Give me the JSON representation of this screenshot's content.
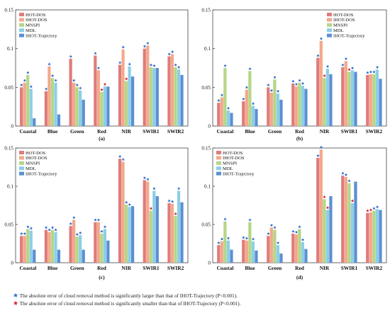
{
  "series_colors": [
    "#e07b7b",
    "#f3a98a",
    "#b5d686",
    "#8ccfe6",
    "#5b8fd4"
  ],
  "chart_data": [
    {
      "type": "bar",
      "panel_label": "(a)",
      "categories": [
        "Coastal",
        "Blue",
        "Green",
        "Red",
        "NIR",
        "SWIR1",
        "SWIR2"
      ],
      "ylim": [
        0,
        0.15
      ],
      "yticks": [
        "0",
        "0.05",
        "0.1",
        "0.15"
      ],
      "legend_position": "top-left",
      "series": [
        {
          "name": "HOT-DOS",
          "values": [
            0.05,
            0.045,
            0.087,
            0.091,
            0.079,
            0.1,
            0.09
          ]
        },
        {
          "name": "IHOT-DOS",
          "values": [
            0.056,
            0.077,
            0.056,
            0.072,
            0.099,
            0.104,
            0.093
          ]
        },
        {
          "name": "MNSPI",
          "values": [
            0.066,
            0.062,
            0.05,
            0.044,
            0.058,
            0.076,
            0.076
          ]
        },
        {
          "name": "MDL",
          "values": [
            0.048,
            0.056,
            0.046,
            0.051,
            0.077,
            0.075,
            0.073
          ]
        },
        {
          "name": "IHOT-Trajectory",
          "values": [
            0.01,
            0.015,
            0.034,
            0.051,
            0.064,
            0.075,
            0.066
          ]
        }
      ],
      "markers": [
        [
          "blue",
          "blue",
          "blue",
          "blue",
          null
        ],
        [
          "blue",
          "blue",
          "blue",
          "blue",
          null
        ],
        [
          "blue",
          "blue",
          "blue",
          "blue",
          null
        ],
        [
          "blue",
          "blue",
          "red",
          "red",
          null
        ],
        [
          "blue",
          "blue",
          "red",
          "blue",
          null
        ],
        [
          "blue",
          "blue",
          "blue",
          "blue",
          null
        ],
        [
          "blue",
          "blue",
          "blue",
          "blue",
          null
        ]
      ]
    },
    {
      "type": "bar",
      "panel_label": "(b)",
      "categories": [
        "Coastal",
        "Blue",
        "Green",
        "Red",
        "NIR",
        "SWIR1",
        "SWIR2"
      ],
      "ylim": [
        0,
        0.15
      ],
      "yticks": [
        "0",
        "0.05",
        "0.1",
        "0.15"
      ],
      "legend_position": "top-right",
      "series": [
        {
          "name": "HOT-DOS",
          "values": [
            0.03,
            0.032,
            0.05,
            0.055,
            0.088,
            0.076,
            0.066
          ]
        },
        {
          "name": "IHOT-DOS",
          "values": [
            0.037,
            0.047,
            0.043,
            0.051,
            0.11,
            0.084,
            0.067
          ]
        },
        {
          "name": "MNSPI",
          "values": [
            0.075,
            0.071,
            0.06,
            0.056,
            0.062,
            0.07,
            0.067
          ]
        },
        {
          "name": "MDL",
          "values": [
            0.02,
            0.026,
            0.042,
            0.052,
            0.074,
            0.072,
            0.073
          ]
        },
        {
          "name": "IHOT-Trajectory",
          "values": [
            0.017,
            0.022,
            0.034,
            0.048,
            0.067,
            0.07,
            0.061
          ]
        }
      ],
      "markers": [
        [
          "blue",
          "blue",
          "blue",
          "blue",
          null
        ],
        [
          "blue",
          "blue",
          "blue",
          "blue",
          null
        ],
        [
          "blue",
          "blue",
          "blue",
          "blue",
          null
        ],
        [
          "blue",
          "blue",
          "blue",
          "blue",
          null
        ],
        [
          "blue",
          "blue",
          "red",
          "blue",
          null
        ],
        [
          "blue",
          "blue",
          "red",
          "blue",
          null
        ],
        [
          "blue",
          "blue",
          "blue",
          "blue",
          null
        ]
      ]
    },
    {
      "type": "bar",
      "panel_label": "(c)",
      "categories": [
        "Coastal",
        "Blue",
        "Green",
        "Red",
        "NIR",
        "SWIR1",
        "SWIR2"
      ],
      "ylim": [
        0,
        0.15
      ],
      "yticks": [
        "0",
        "0.05",
        "0.1",
        "0.15"
      ],
      "legend_position": "top-left",
      "series": [
        {
          "name": "HOT-DOS",
          "values": [
            0.035,
            0.043,
            0.048,
            0.053,
            0.136,
            0.108,
            0.078
          ]
        },
        {
          "name": "IHOT-DOS",
          "values": [
            0.035,
            0.04,
            0.056,
            0.053,
            0.132,
            0.106,
            0.077
          ]
        },
        {
          "name": "MNSPI",
          "values": [
            0.044,
            0.043,
            0.034,
            0.038,
            0.076,
            0.068,
            0.061
          ]
        },
        {
          "name": "MDL",
          "values": [
            0.042,
            0.04,
            0.036,
            0.044,
            0.073,
            0.094,
            0.094
          ]
        },
        {
          "name": "IHOT-Trajectory",
          "values": [
            0.017,
            0.017,
            0.017,
            0.029,
            0.074,
            0.087,
            0.079
          ]
        }
      ],
      "markers": [
        [
          "blue",
          "blue",
          "blue",
          "blue",
          null
        ],
        [
          "blue",
          "blue",
          "blue",
          "blue",
          null
        ],
        [
          "blue",
          "blue",
          "blue",
          "blue",
          null
        ],
        [
          "blue",
          "blue",
          "blue",
          "blue",
          null
        ],
        [
          "blue",
          "blue",
          "blue",
          "blue",
          null
        ],
        [
          "blue",
          "blue",
          "red",
          "blue",
          null
        ],
        [
          "blue",
          "blue",
          "red",
          "blue",
          null
        ]
      ]
    },
    {
      "type": "bar",
      "panel_label": "(d)",
      "categories": [
        "Coastal",
        "Blue",
        "Green",
        "Red",
        "NIR",
        "SWIR1",
        "SWIR2"
      ],
      "ylim": [
        0,
        0.15
      ],
      "yticks": [
        "0",
        "0.05",
        "0.1",
        "0.15"
      ],
      "legend_position": "top-left",
      "series": [
        {
          "name": "HOT-DOS",
          "values": [
            0.023,
            0.03,
            0.035,
            0.038,
            0.137,
            0.114,
            0.065
          ]
        },
        {
          "name": "IHOT-DOS",
          "values": [
            0.028,
            0.029,
            0.046,
            0.037,
            0.148,
            0.112,
            0.066
          ]
        },
        {
          "name": "MNSPI",
          "values": [
            0.054,
            0.053,
            0.043,
            0.044,
            0.083,
            0.104,
            0.068
          ]
        },
        {
          "name": "MDL",
          "values": [
            0.029,
            0.028,
            0.023,
            0.027,
            0.069,
            0.078,
            0.07
          ]
        },
        {
          "name": "IHOT-Trajectory",
          "values": [
            0.017,
            0.016,
            0.012,
            0.018,
            0.087,
            0.106,
            0.069
          ]
        }
      ],
      "markers": [
        [
          "blue",
          "blue",
          "blue",
          "blue",
          null
        ],
        [
          "blue",
          "blue",
          "blue",
          "blue",
          null
        ],
        [
          "blue",
          "blue",
          "blue",
          "blue",
          null
        ],
        [
          "blue",
          "blue",
          "blue",
          "blue",
          null
        ],
        [
          "blue",
          "blue",
          "red",
          "red",
          null
        ],
        [
          "blue",
          "blue",
          "blue",
          "red",
          null
        ],
        [
          "red",
          "red",
          "blue",
          "blue",
          null
        ]
      ]
    }
  ],
  "footnotes": {
    "blue_star": "★",
    "blue_text": " The absolute error of cloud removal method is significantly larger than that of IHOT-Trajectory (P<0.001).",
    "red_star": "★",
    "red_text": " The absolute error of cloud removal method is significantly smaller than that of IHOT-Trajectory (P<0.001).",
    "blue_color": "#2c6bc9",
    "red_color": "#d0202a"
  }
}
